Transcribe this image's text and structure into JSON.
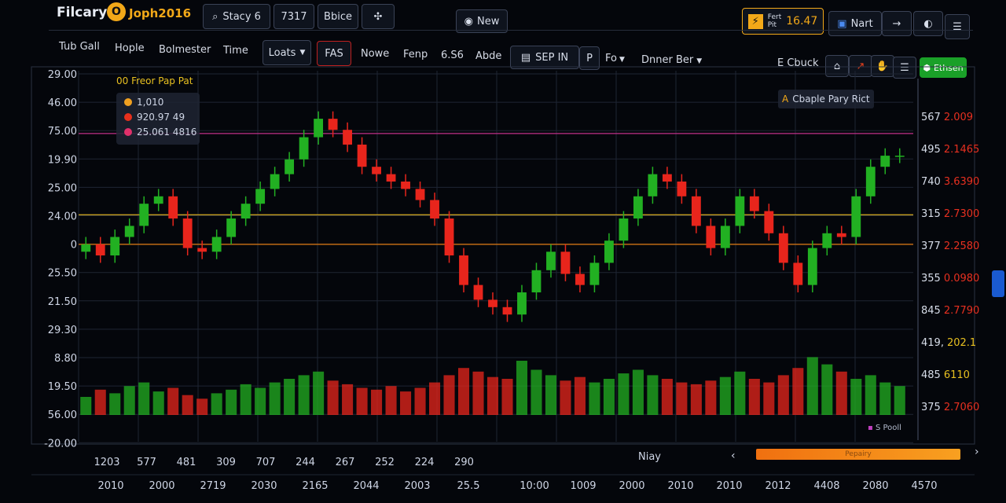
{
  "header": {
    "logo": "Filcary",
    "logo_mark": "O",
    "brand": "Joph2016",
    "search": "Stacy 6",
    "buttons": [
      "7317",
      "Bbice"
    ],
    "new": "New",
    "ticker_label": [
      "Fert",
      "Pit"
    ],
    "ticker_value": "16.47",
    "nart": "Nart"
  },
  "toolbar": {
    "left": [
      "Tub Gall",
      "Hople",
      "Bolmester",
      "Time"
    ],
    "loats": "Loats",
    "items": [
      "FAS",
      "Nowe",
      "Fenp",
      "6.S6",
      "Abde"
    ],
    "sep": "SEP IN",
    "p": "P",
    "fo": "Fo",
    "dinner": "Dnner Ber",
    "check": "E Cbuck",
    "action": "Ethsen"
  },
  "chart": {
    "legend_title": "00 Freor Pap Pat",
    "legend": [
      {
        "label": "1,010",
        "color": "#f0a020"
      },
      {
        "label": "920.97 49",
        "color": "#e8301c"
      },
      {
        "label": "25.061 4816",
        "color": "#e0306a"
      }
    ],
    "annotation_icon": "A",
    "annotation": "Cbaple Pary Rict",
    "footnote": "S Pooll",
    "left_labels": [
      "29.00",
      "46.00",
      "75.00",
      "19.90",
      "25.00",
      "24.00",
      "0",
      "25.50",
      "21.50",
      "29.30",
      "8.80",
      "19.50",
      "56.00",
      "-20.00"
    ],
    "right_labels": [
      {
        "a": "567",
        "b": "2.009",
        "color": "#e83020"
      },
      {
        "a": "495",
        "b": "2.1465",
        "color": "#e83020"
      },
      {
        "a": "740",
        "b": "3.6390",
        "color": "#e83020"
      },
      {
        "a": "315",
        "b": "2.7300",
        "color": "#e83020"
      },
      {
        "a": "377",
        "b": "2.2580",
        "color": "#e83020"
      },
      {
        "a": "355",
        "b": "0.0980",
        "color": "#e83020"
      },
      {
        "a": "845",
        "b": "2.7790",
        "color": "#e83020"
      },
      {
        "a": "419,",
        "b": "202.1",
        "color": "#e8c020"
      },
      {
        "a": "485",
        "b": "6110",
        "color": "#e8c020"
      },
      {
        "a": "375",
        "b": "2.7060",
        "color": "#e83020"
      }
    ],
    "x_labels_1": [
      "1203",
      "577",
      "481",
      "309",
      "707",
      "244",
      "267",
      "252",
      "224",
      "290"
    ],
    "x_labels_2": [
      "2010",
      "2000",
      "2719",
      "2030",
      "2165",
      "2044",
      "2003",
      "25.5",
      "10:00",
      "1009",
      "2000",
      "2010",
      "2010",
      "2012",
      "4408",
      "2080",
      "4570"
    ],
    "ylim": [
      0,
      100
    ],
    "volume_lim": [
      0,
      40
    ],
    "up_color": "#22b022",
    "down_color": "#e8251c",
    "levels": [
      {
        "value": 83,
        "color": "#c0308a"
      },
      {
        "value": 61,
        "color": "#c8a020"
      },
      {
        "value": 53,
        "color": "#e07a10"
      }
    ],
    "open": [
      51,
      53,
      50,
      55,
      58,
      64,
      66,
      60,
      52,
      51,
      55,
      60,
      64,
      68,
      72,
      76,
      82,
      87,
      84,
      80,
      74,
      72,
      70,
      68,
      65,
      60,
      50,
      42,
      38,
      36,
      34,
      40,
      46,
      51,
      45,
      42,
      48,
      54,
      60,
      66,
      72,
      70,
      66,
      58,
      52,
      58,
      66,
      62,
      56,
      48,
      42,
      52,
      56,
      55,
      66,
      74,
      77
    ],
    "high": [
      55,
      55,
      57,
      60,
      66,
      68,
      68,
      62,
      54,
      57,
      62,
      66,
      70,
      74,
      78,
      84,
      89,
      89,
      86,
      82,
      76,
      74,
      72,
      70,
      67,
      62,
      52,
      44,
      40,
      38,
      42,
      48,
      53,
      53,
      47,
      50,
      56,
      62,
      68,
      74,
      74,
      72,
      68,
      60,
      60,
      68,
      68,
      64,
      58,
      50,
      54,
      58,
      58,
      68,
      76,
      79,
      79
    ],
    "low": [
      49,
      48,
      48,
      53,
      56,
      62,
      58,
      50,
      49,
      49,
      53,
      58,
      62,
      66,
      70,
      74,
      80,
      82,
      78,
      72,
      70,
      68,
      66,
      63,
      58,
      48,
      40,
      36,
      34,
      32,
      32,
      38,
      44,
      43,
      40,
      40,
      46,
      52,
      58,
      64,
      68,
      64,
      56,
      50,
      50,
      56,
      60,
      54,
      46,
      40,
      40,
      50,
      53,
      53,
      64,
      72,
      75
    ],
    "close": [
      53,
      50,
      55,
      58,
      64,
      66,
      60,
      52,
      51,
      55,
      60,
      64,
      68,
      72,
      76,
      82,
      87,
      84,
      80,
      74,
      72,
      70,
      68,
      65,
      60,
      50,
      42,
      38,
      36,
      34,
      40,
      46,
      51,
      45,
      42,
      48,
      54,
      60,
      66,
      72,
      70,
      66,
      58,
      52,
      58,
      66,
      62,
      56,
      48,
      42,
      52,
      56,
      55,
      66,
      74,
      77,
      77
    ],
    "volume": [
      10,
      14,
      12,
      16,
      18,
      13,
      15,
      11,
      9,
      12,
      14,
      17,
      15,
      18,
      20,
      22,
      24,
      19,
      17,
      15,
      14,
      16,
      13,
      15,
      18,
      22,
      26,
      24,
      21,
      20,
      30,
      25,
      22,
      19,
      21,
      18,
      20,
      23,
      25,
      22,
      20,
      18,
      17,
      19,
      21,
      24,
      20,
      18,
      22,
      26,
      32,
      28,
      24,
      20,
      22,
      18,
      16
    ]
  },
  "footer": {
    "period": "Niay",
    "progress": "Pepairy"
  }
}
